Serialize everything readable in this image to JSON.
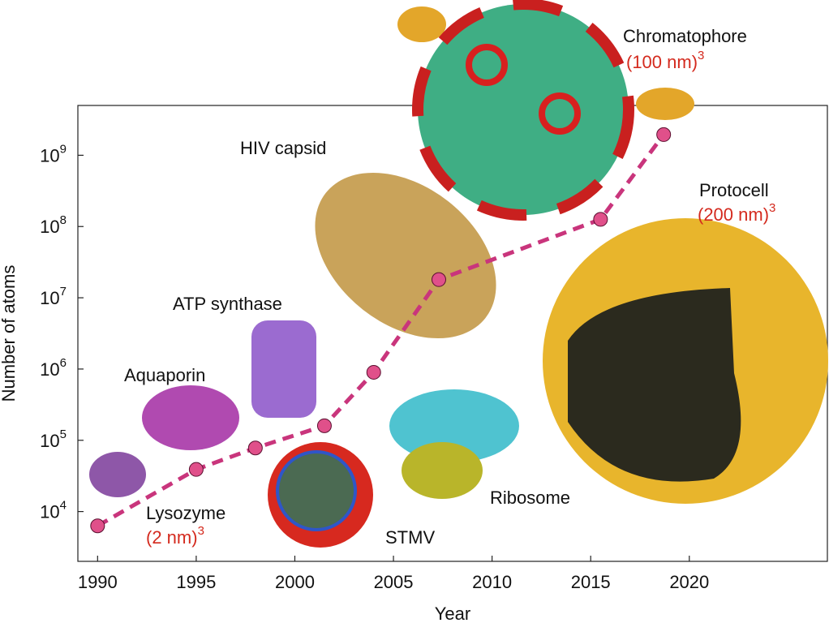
{
  "chart_data": {
    "type": "line",
    "x_label": "Year",
    "y_label": "Number of atoms",
    "x": [
      1990,
      1995,
      1998,
      2001.5,
      2004,
      2007.3,
      2015.5,
      2018.7
    ],
    "series": [
      {
        "color": "#c9357c",
        "values": [
          6300,
          39000,
          78000,
          160000,
          900000,
          18000000,
          126000000,
          1950000000
        ]
      }
    ],
    "xlim": [
      1989,
      2027
    ],
    "xticks": [
      1990,
      1995,
      2000,
      2005,
      2010,
      2015,
      2020
    ],
    "ylim": [
      2000,
      5000000000
    ],
    "log_y": true,
    "yticks": [
      {
        "value": 10000,
        "label": "10",
        "exp": "4"
      },
      {
        "value": 100000,
        "label": "10",
        "exp": "5"
      },
      {
        "value": 1000000,
        "label": "10",
        "exp": "6"
      },
      {
        "value": 10000000,
        "label": "10",
        "exp": "7"
      },
      {
        "value": 100000000,
        "label": "10",
        "exp": "8"
      },
      {
        "value": 1000000000,
        "label": "10",
        "exp": "9"
      }
    ],
    "annotations": [
      {
        "label": "Chromatophore",
        "size": "(100 nm)",
        "exp": "3"
      },
      {
        "label": "HIV capsid"
      },
      {
        "label": "Protocell",
        "size": "(200 nm)",
        "exp": "3"
      },
      {
        "label": "ATP synthase"
      },
      {
        "label": "Aquaporin"
      },
      {
        "label": "Lysozyme",
        "size": "(2 nm)",
        "exp": "3"
      },
      {
        "label": "STMV"
      },
      {
        "label": "Ribosome"
      }
    ]
  }
}
